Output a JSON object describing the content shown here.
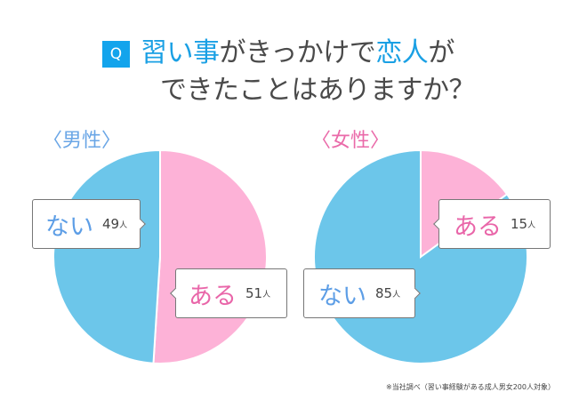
{
  "header": {
    "q_badge": "Q",
    "title_line1_hl1": "習い事",
    "title_line1_mid": "がきっかけで",
    "title_line1_hl2": "恋人",
    "title_line1_end": "が",
    "title_line2": "できたことはありますか？"
  },
  "colors": {
    "accent_blue": "#13a4ec",
    "slice_blue": "#6cc6ea",
    "slice_pink": "#fdb2d7",
    "label_blue": "#5d9ee6",
    "label_pink": "#e966a9"
  },
  "male": {
    "heading": "〈男性〉",
    "no": {
      "label": "ない",
      "value": "49",
      "unit": "人"
    },
    "yes": {
      "label": "ある",
      "value": "51",
      "unit": "人"
    }
  },
  "female": {
    "heading": "〈女性〉",
    "no": {
      "label": "ない",
      "value": "85",
      "unit": "人"
    },
    "yes": {
      "label": "ある",
      "value": "15",
      "unit": "人"
    }
  },
  "footnote": "※当社調べ（習い事経験がある成人男女200人対象）",
  "chart_data": [
    {
      "type": "pie",
      "title": "〈男性〉",
      "categories": [
        "ある",
        "ない"
      ],
      "values": [
        51,
        49
      ],
      "unit": "人",
      "colors": [
        "#fdb2d7",
        "#6cc6ea"
      ]
    },
    {
      "type": "pie",
      "title": "〈女性〉",
      "categories": [
        "ある",
        "ない"
      ],
      "values": [
        15,
        85
      ],
      "unit": "人",
      "colors": [
        "#fdb2d7",
        "#6cc6ea"
      ]
    }
  ]
}
